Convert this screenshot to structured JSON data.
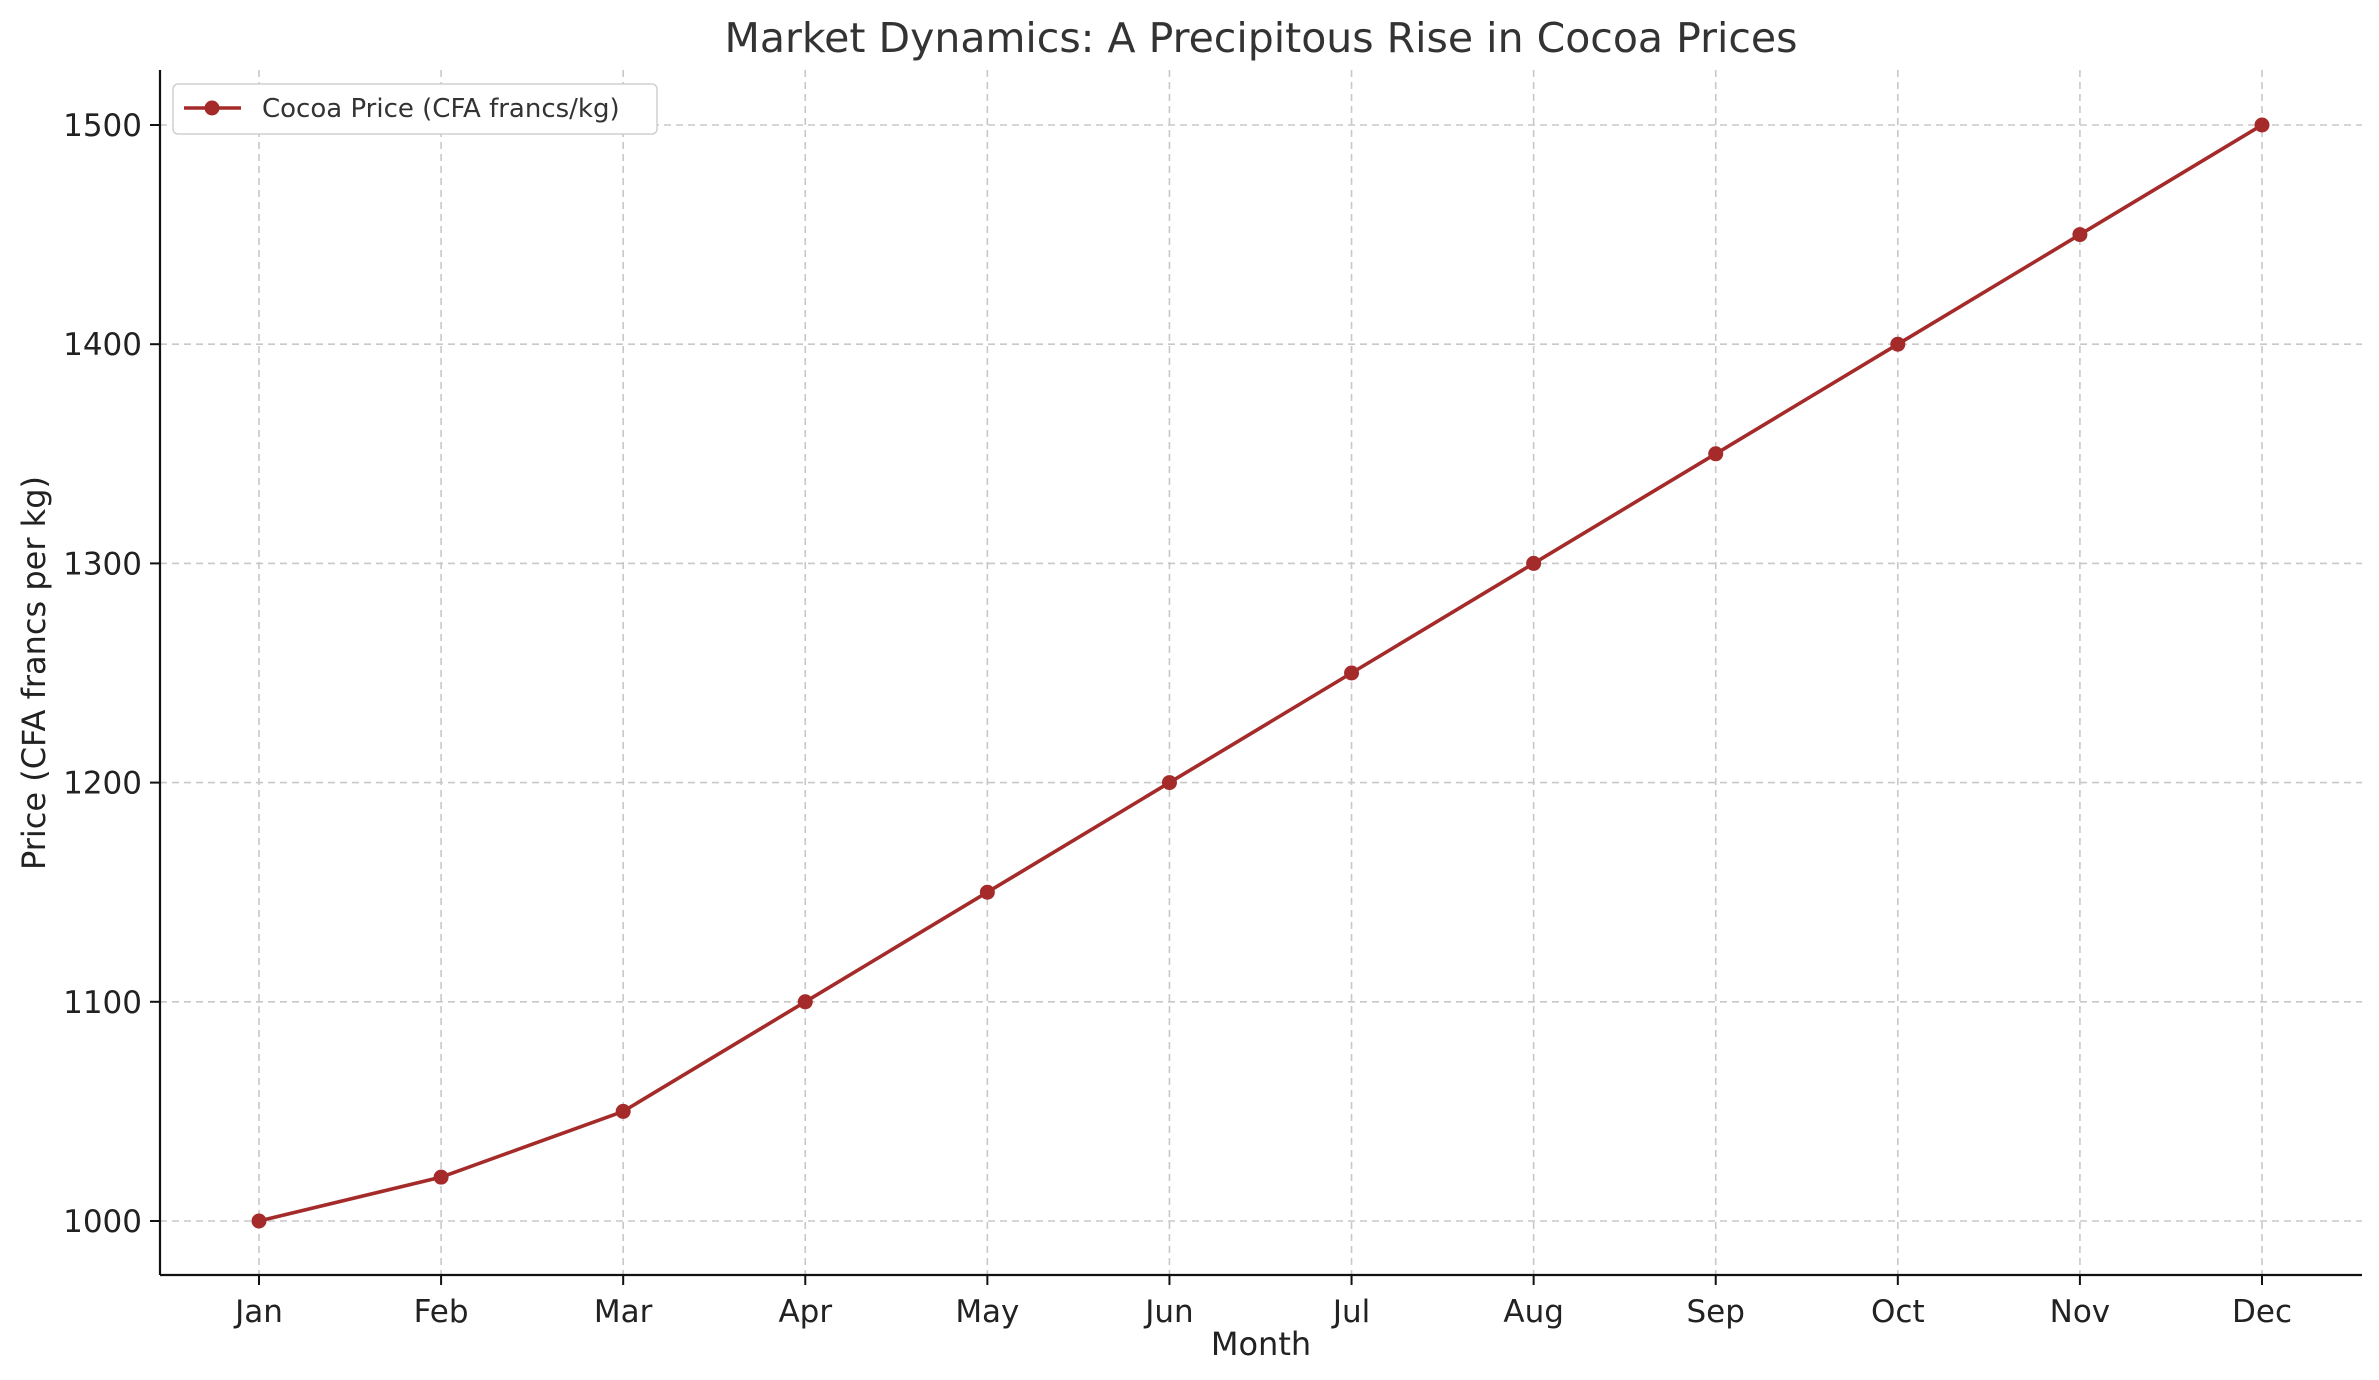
{
  "chart_data": {
    "type": "line",
    "title": "Market Dynamics: A Precipitous Rise in Cocoa Prices",
    "xlabel": "Month",
    "ylabel": "Price (CFA francs per kg)",
    "categories": [
      "Jan",
      "Feb",
      "Mar",
      "Apr",
      "May",
      "Jun",
      "Jul",
      "Aug",
      "Sep",
      "Oct",
      "Nov",
      "Dec"
    ],
    "series": [
      {
        "name": "Cocoa Price (CFA francs/kg)",
        "values": [
          1000,
          1020,
          1050,
          1100,
          1150,
          1200,
          1250,
          1300,
          1350,
          1400,
          1450,
          1500
        ],
        "color": "#a52a2a",
        "marker": "circle"
      }
    ],
    "ylim": [
      975,
      1525
    ],
    "yticks": [
      1000,
      1100,
      1200,
      1300,
      1400,
      1500
    ],
    "grid": true,
    "legend_position": "top-left"
  }
}
